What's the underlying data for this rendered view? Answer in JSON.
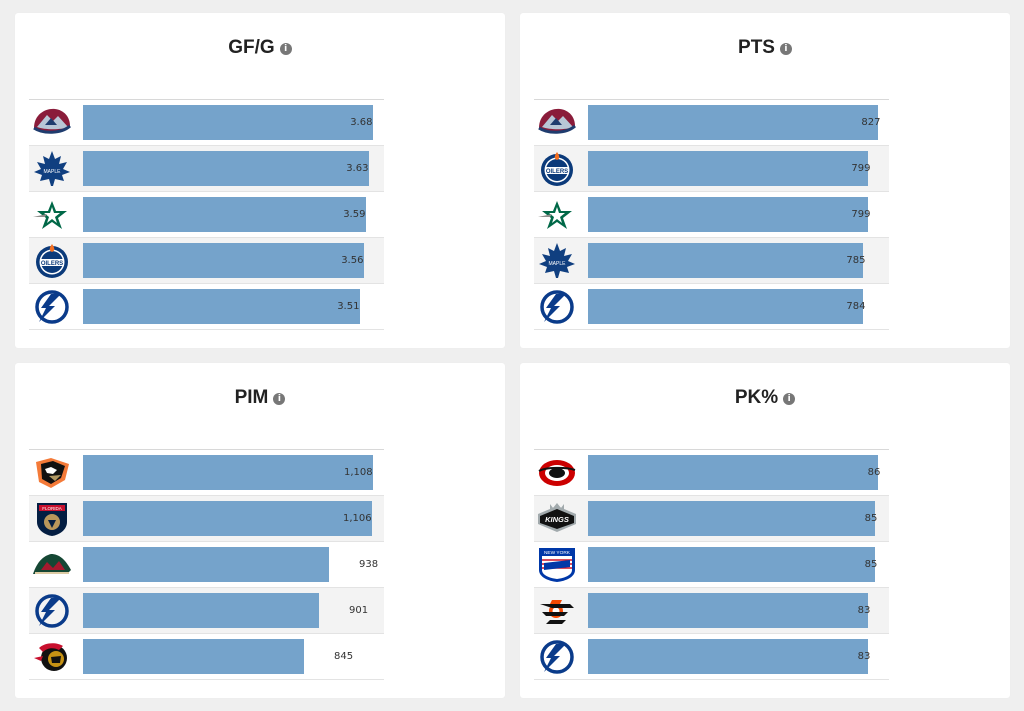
{
  "panels": [
    {
      "title": "GF/G",
      "max": 3.68,
      "rows": [
        {
          "team": "Colorado Avalanche",
          "logo": "avalanche-logo",
          "value": 3.68,
          "label": "3.68"
        },
        {
          "team": "Toronto Maple Leafs",
          "logo": "maple-leafs-logo",
          "value": 3.63,
          "label": "3.63"
        },
        {
          "team": "Dallas Stars",
          "logo": "stars-logo",
          "value": 3.59,
          "label": "3.59"
        },
        {
          "team": "Edmonton Oilers",
          "logo": "oilers-logo",
          "value": 3.56,
          "label": "3.56"
        },
        {
          "team": "Tampa Bay Lightning",
          "logo": "lightning-logo",
          "value": 3.51,
          "label": "3.51"
        }
      ]
    },
    {
      "title": "PTS",
      "max": 827,
      "rows": [
        {
          "team": "Colorado Avalanche",
          "logo": "avalanche-logo",
          "value": 827,
          "label": "827"
        },
        {
          "team": "Edmonton Oilers",
          "logo": "oilers-logo",
          "value": 799,
          "label": "799"
        },
        {
          "team": "Dallas Stars",
          "logo": "stars-logo",
          "value": 799,
          "label": "799"
        },
        {
          "team": "Toronto Maple Leafs",
          "logo": "maple-leafs-logo",
          "value": 785,
          "label": "785"
        },
        {
          "team": "Tampa Bay Lightning",
          "logo": "lightning-logo",
          "value": 784,
          "label": "784"
        }
      ]
    },
    {
      "title": "PIM",
      "max": 1108,
      "rows": [
        {
          "team": "Anaheim Ducks",
          "logo": "ducks-logo",
          "value": 1108,
          "label": "1,108"
        },
        {
          "team": "Florida Panthers",
          "logo": "panthers-logo",
          "value": 1106,
          "label": "1,106"
        },
        {
          "team": "Minnesota Wild",
          "logo": "wild-logo",
          "value": 938,
          "label": "938"
        },
        {
          "team": "Tampa Bay Lightning",
          "logo": "lightning-logo",
          "value": 901,
          "label": "901"
        },
        {
          "team": "Ottawa Senators",
          "logo": "senators-logo",
          "value": 845,
          "label": "845"
        }
      ]
    },
    {
      "title": "PK%",
      "max": 86,
      "rows": [
        {
          "team": "Carolina Hurricanes",
          "logo": "hurricanes-logo",
          "value": 86,
          "label": "86"
        },
        {
          "team": "Los Angeles Kings",
          "logo": "kings-logo",
          "value": 85,
          "label": "85"
        },
        {
          "team": "New York Rangers",
          "logo": "rangers-logo",
          "value": 85,
          "label": "85"
        },
        {
          "team": "Philadelphia Flyers",
          "logo": "flyers-logo",
          "value": 83,
          "label": "83"
        },
        {
          "team": "Tampa Bay Lightning",
          "logo": "lightning-logo",
          "value": 83,
          "label": "83"
        }
      ]
    }
  ],
  "info_glyph": "i",
  "colors": {
    "bar": "#75a3cb",
    "background": "#efefef",
    "card": "#ffffff"
  }
}
